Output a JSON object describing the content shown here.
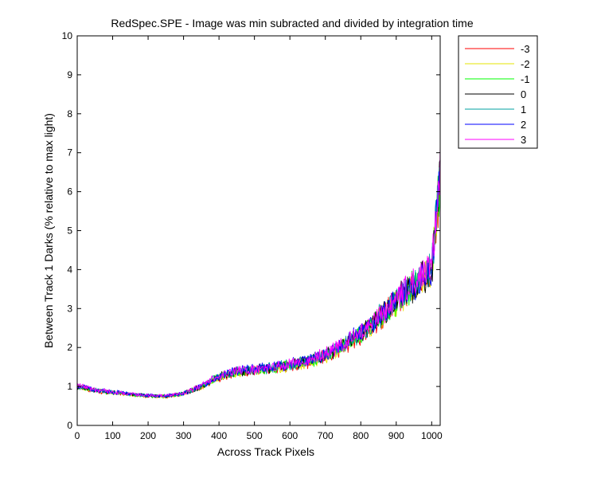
{
  "chart_data": {
    "type": "line",
    "title": "RedSpec.SPE - Image was min subracted and divided by integration time",
    "xlabel": "Across Track Pixels",
    "ylabel": "Between Track 1 Darks (% relative to max light)",
    "xlim": [
      0,
      1024
    ],
    "ylim": [
      0,
      10
    ],
    "xticks": [
      0,
      100,
      200,
      300,
      400,
      500,
      600,
      700,
      800,
      900,
      1000
    ],
    "yticks": [
      0,
      1,
      2,
      3,
      4,
      5,
      6,
      7,
      8,
      9,
      10
    ],
    "grid": false,
    "legend_position": "outside-top-right",
    "trend": {
      "x": [
        0,
        50,
        100,
        150,
        200,
        250,
        300,
        350,
        400,
        450,
        500,
        550,
        600,
        650,
        700,
        750,
        800,
        850,
        900,
        950,
        1000,
        1024
      ],
      "y": [
        1.0,
        0.9,
        0.85,
        0.8,
        0.76,
        0.75,
        0.82,
        1.0,
        1.25,
        1.38,
        1.42,
        1.48,
        1.55,
        1.65,
        1.8,
        2.05,
        2.35,
        2.75,
        3.2,
        3.6,
        4.0,
        6.5
      ]
    },
    "series": [
      {
        "name": "-3",
        "color": "#ff0000"
      },
      {
        "name": "-2",
        "color": "#e6e600"
      },
      {
        "name": "-1",
        "color": "#00ff00"
      },
      {
        "name": "0",
        "color": "#000000"
      },
      {
        "name": "1",
        "color": "#00a0a0"
      },
      {
        "name": "2",
        "color": "#0000ff"
      },
      {
        "name": "3",
        "color": "#ff00ff"
      }
    ]
  }
}
